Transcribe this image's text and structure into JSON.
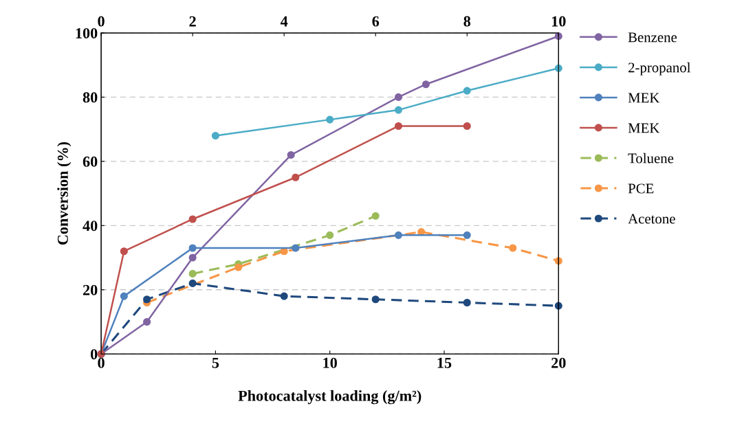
{
  "chart_data": {
    "type": "line",
    "xlabel": "Photocatalyst loading (g/m²)",
    "ylabel": "Conversion (%)",
    "xlim": [
      0,
      20
    ],
    "xticks": [
      0,
      5,
      10,
      15,
      20
    ],
    "x2lim": [
      0,
      10
    ],
    "x2ticks": [
      0,
      2,
      4,
      6,
      8,
      10
    ],
    "ylim": [
      0,
      100
    ],
    "yticks": [
      0,
      20,
      40,
      60,
      80,
      100
    ],
    "grid": "y",
    "legend": "right",
    "marker": "circle",
    "series": [
      {
        "name": "Benzene",
        "color": "#8064a2",
        "line_style": "solid",
        "x": [
          0,
          2,
          4,
          8.3,
          13,
          14.2,
          20
        ],
        "values": [
          0,
          10,
          30,
          62,
          80,
          84,
          99
        ]
      },
      {
        "name": "2-propanol",
        "color": "#4bacc6",
        "line_style": "solid",
        "x": [
          5,
          10,
          13,
          16,
          20
        ],
        "values": [
          68,
          73,
          76,
          82,
          89
        ]
      },
      {
        "name": "MEK",
        "color": "#4f81bd",
        "line_style": "solid",
        "x": [
          0,
          1,
          4,
          8.5,
          13,
          16
        ],
        "values": [
          0,
          18,
          33,
          33,
          37,
          37
        ]
      },
      {
        "name": "MEK",
        "color": "#c0504d",
        "line_style": "solid",
        "x": [
          0,
          1,
          4,
          8.5,
          13,
          16
        ],
        "values": [
          0,
          32,
          42,
          55,
          71,
          71
        ]
      },
      {
        "name": "Toluene",
        "color": "#9bbb59",
        "line_style": "dashed",
        "x": [
          4,
          6,
          10,
          12
        ],
        "values": [
          25,
          28,
          37,
          43
        ]
      },
      {
        "name": "PCE",
        "color": "#f79646",
        "line_style": "dashed",
        "x": [
          2,
          6,
          8,
          14,
          18,
          20
        ],
        "values": [
          16,
          27,
          32,
          38,
          33,
          29
        ]
      },
      {
        "name": "Acetone",
        "color": "#1f497d",
        "line_style": "dashed",
        "x": [
          0,
          2,
          4,
          8,
          12,
          16,
          20
        ],
        "values": [
          0,
          17,
          22,
          18,
          17,
          16,
          15
        ]
      }
    ]
  }
}
